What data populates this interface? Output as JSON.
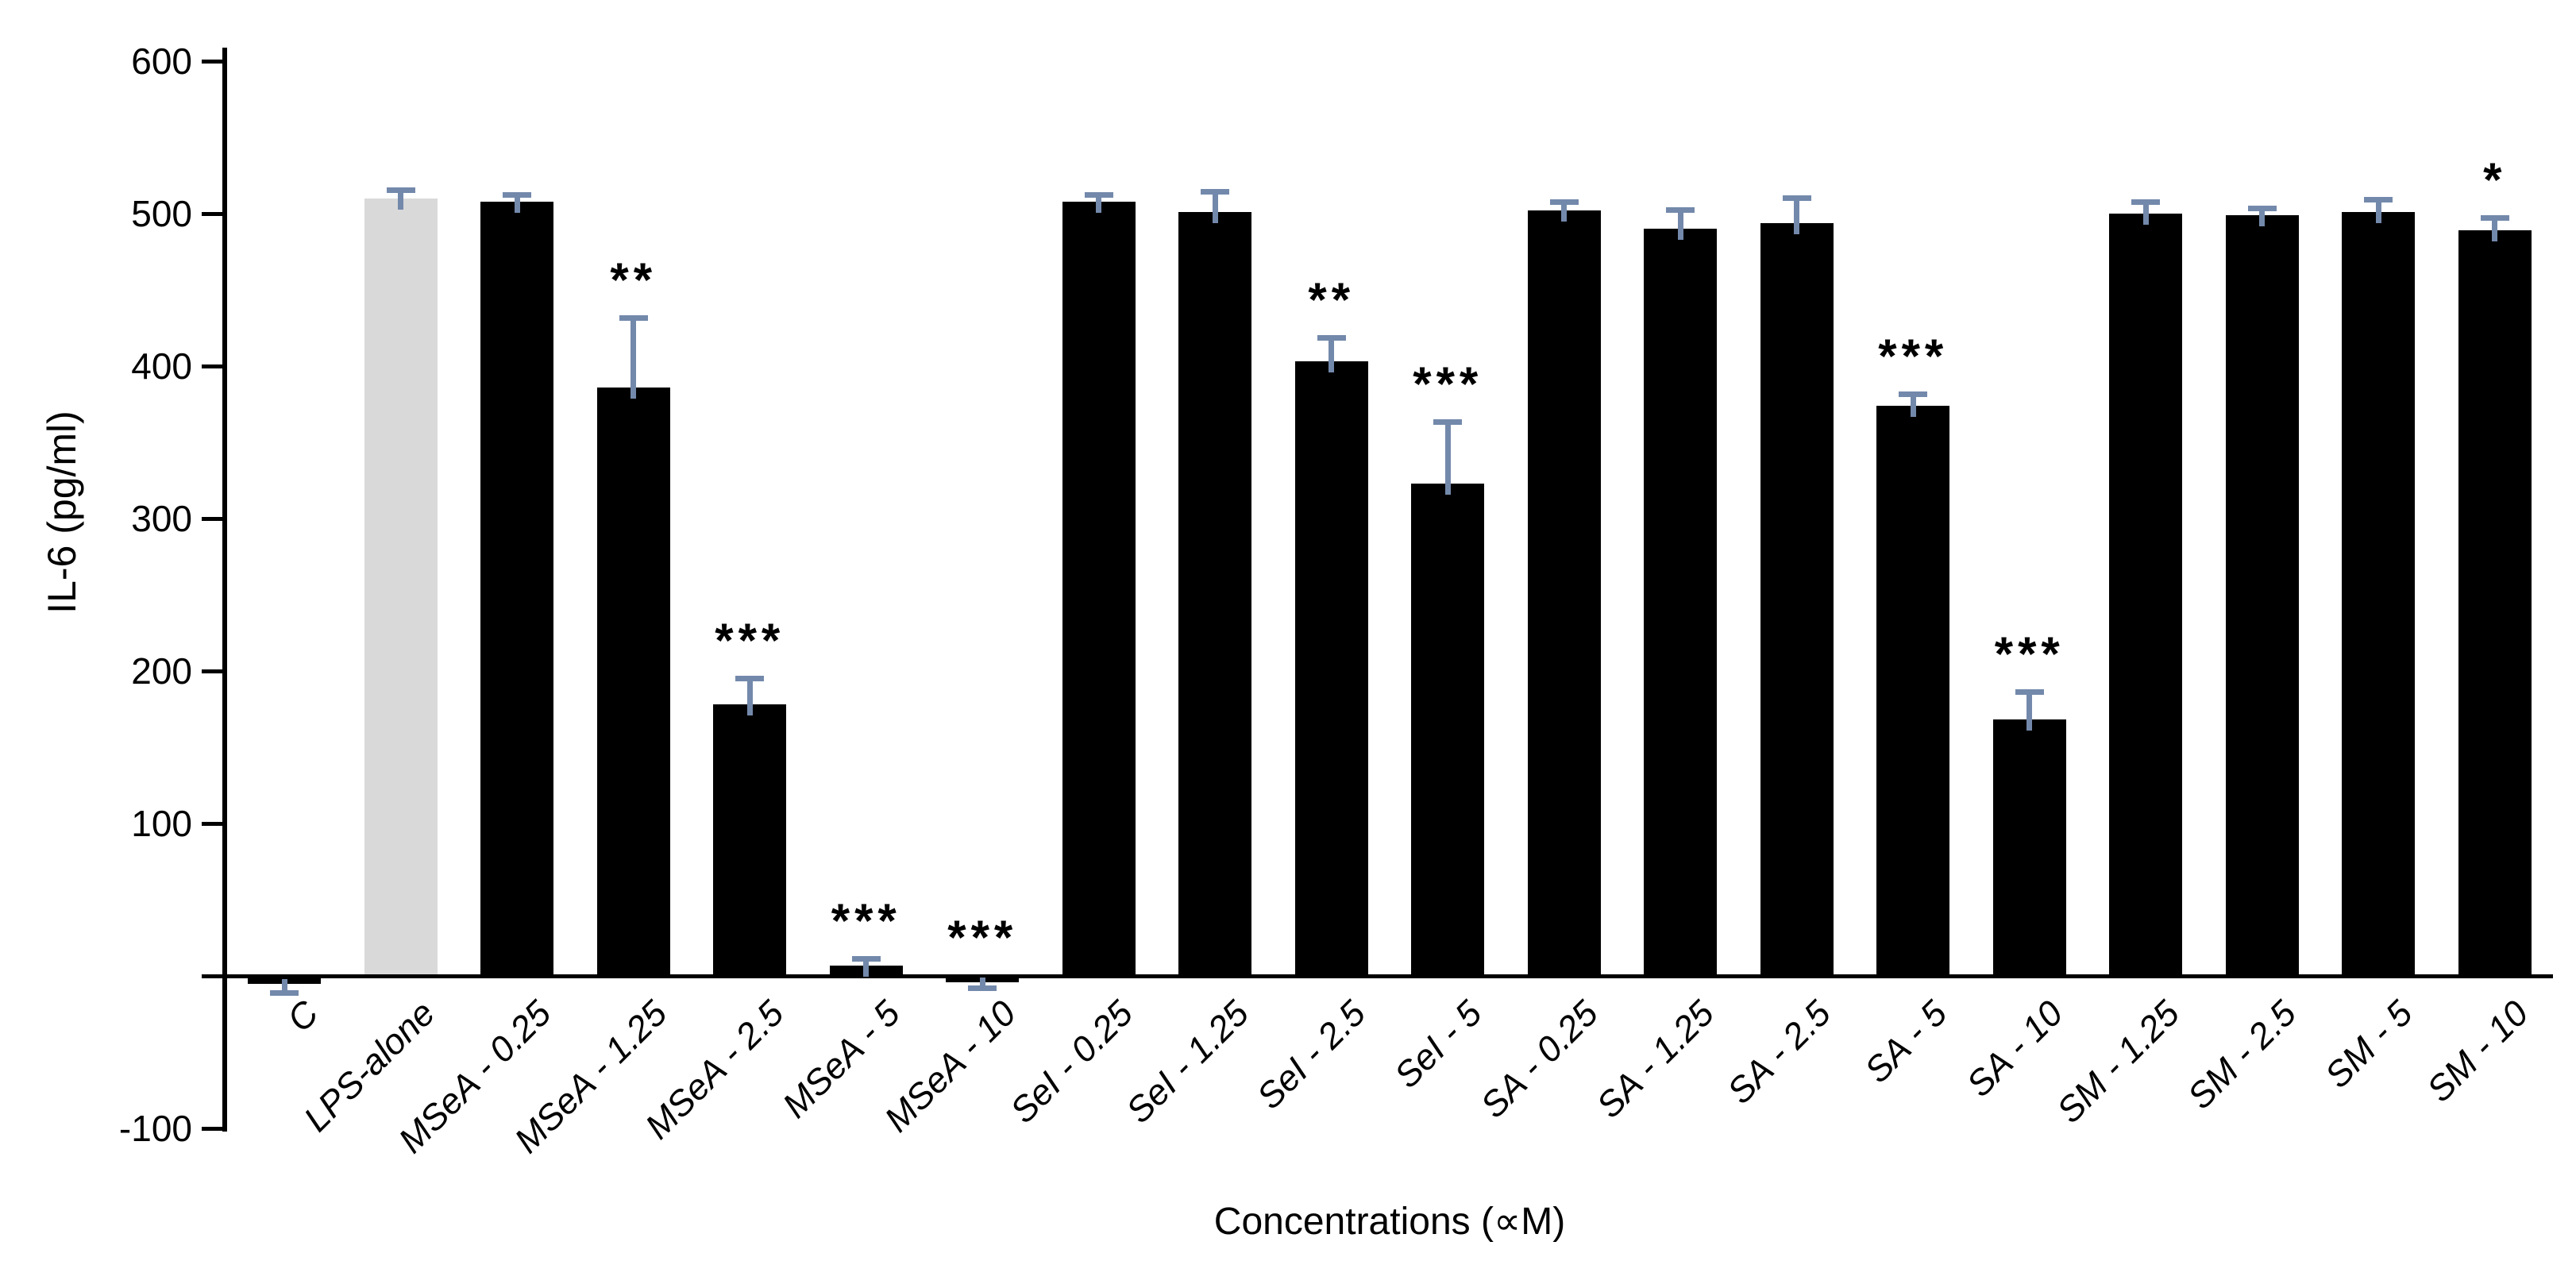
{
  "chart_data": {
    "type": "bar",
    "title": "",
    "xlabel": "Concentrations (∝M)",
    "ylabel": "IL-6 (pg/ml)",
    "ylim": [
      -100,
      600
    ],
    "yticks": [
      600,
      500,
      400,
      300,
      200,
      100,
      0,
      -100
    ],
    "grid": false,
    "legend": "none",
    "bar_color_default": "#000000",
    "lps_bar_color": "#D9D9D9",
    "error_bar_color": "#7389AB",
    "categories": [
      "C",
      "LPS-alone",
      "MSeA - 0.25",
      "MSeA - 1.25",
      "MSeA - 2.5",
      "MSeA - 5",
      "MSeA - 10",
      "SeI - 0.25",
      "SeI - 1.25",
      "SeI - 2.5",
      "SeI - 5",
      "SA - 0.25",
      "SA - 1.25",
      "SA - 2.5",
      "SA - 5",
      "SA - 10",
      "SM - 1.25",
      "SM - 2.5",
      "SM - 5",
      "SM - 10"
    ],
    "series": [
      {
        "name": "IL-6",
        "values": [
          -5,
          510,
          508,
          386,
          178,
          7,
          -4,
          508,
          501,
          403,
          323,
          502,
          490,
          494,
          374,
          168,
          500,
          499,
          501,
          489
        ],
        "errors": [
          5,
          4,
          3,
          44,
          16,
          3,
          3,
          3,
          12,
          14,
          39,
          4,
          11,
          15,
          6,
          17,
          6,
          3,
          7,
          7
        ],
        "significance": [
          "",
          "",
          "",
          "**",
          "***",
          "***",
          "***",
          "",
          "",
          "**",
          "***",
          "",
          "",
          "",
          "***",
          "***",
          "",
          "",
          "",
          "*"
        ],
        "bar_colors": [
          "#000000",
          "#D9D9D9",
          "#000000",
          "#000000",
          "#000000",
          "#000000",
          "#000000",
          "#000000",
          "#000000",
          "#000000",
          "#000000",
          "#000000",
          "#000000",
          "#000000",
          "#000000",
          "#000000",
          "#000000",
          "#000000",
          "#000000",
          "#000000"
        ]
      }
    ]
  }
}
